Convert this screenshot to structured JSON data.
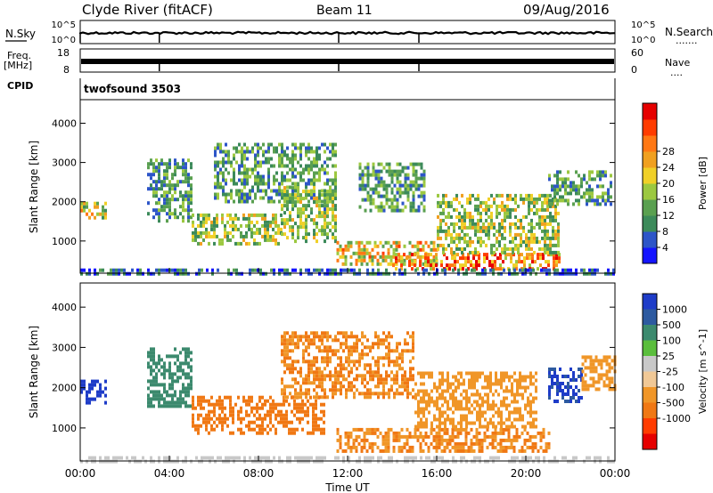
{
  "header": {
    "station": "Clyde River (fitACF)",
    "beam": "Beam 11",
    "date": "09/Aug/2016"
  },
  "noise_panel": {
    "left_label": "N.Sky",
    "left_ticks": [
      "10^5",
      "10^0"
    ],
    "right_ticks": [
      "10^5",
      "10^0"
    ],
    "right_label": "N.Search",
    "right_dots": "......."
  },
  "freq_panel": {
    "left_label_top": "Freq.",
    "left_label_bottom": "[MHz]",
    "left_ticks": [
      18,
      8
    ],
    "right_ticks": [
      60,
      0
    ],
    "right_label": "Nave",
    "right_dots": "...."
  },
  "cpid_panel": {
    "label": "CPID",
    "value": "twofsound 3503"
  },
  "axes": {
    "ylabel": "Slant Range [km]",
    "yticks": [
      1000,
      2000,
      3000,
      4000
    ],
    "xlabel": "Time UT",
    "xticks": [
      "00:00",
      "04:00",
      "08:00",
      "12:00",
      "16:00",
      "20:00",
      "00:00"
    ]
  },
  "chart_data": [
    {
      "type": "heatmap",
      "name": "power",
      "x_range_hours": [
        0,
        24
      ],
      "y_range_km": [
        180,
        4600
      ],
      "colorbar": {
        "label": "Power [dB]",
        "range": [
          0,
          32
        ],
        "ticks": [
          "4",
          "8",
          "12",
          "16",
          "20",
          "24",
          "28"
        ],
        "colors": [
          "#1414ff",
          "#2d55c8",
          "#3c8a5a",
          "#5aa050",
          "#9cc840",
          "#f0d028",
          "#f0a020",
          "#ff7814",
          "#ff3c00",
          "#e60000"
        ]
      },
      "regions": [
        {
          "t": [
            0.0,
            1.2
          ],
          "r": [
            1600,
            2000
          ],
          "v": 16
        },
        {
          "t": [
            3.0,
            5.0
          ],
          "r": [
            1500,
            3100
          ],
          "v": 9
        },
        {
          "t": [
            5.0,
            9.0
          ],
          "r": [
            900,
            1700
          ],
          "v": 14
        },
        {
          "t": [
            6.0,
            11.5
          ],
          "r": [
            2000,
            3500
          ],
          "v": 10
        },
        {
          "t": [
            9.0,
            11.5
          ],
          "r": [
            1000,
            2400
          ],
          "v": 13
        },
        {
          "t": [
            11.5,
            16.0
          ],
          "r": [
            400,
            1000
          ],
          "v": 18
        },
        {
          "t": [
            12.5,
            15.5
          ],
          "r": [
            1800,
            3000
          ],
          "v": 10
        },
        {
          "t": [
            14.0,
            21.5
          ],
          "r": [
            300,
            700
          ],
          "v": 24
        },
        {
          "t": [
            16.0,
            21.5
          ],
          "r": [
            700,
            2200
          ],
          "v": 14
        },
        {
          "t": [
            21.0,
            23.8
          ],
          "r": [
            1900,
            2800
          ],
          "v": 10
        },
        {
          "t": [
            0.0,
            24.0
          ],
          "r": [
            180,
            300
          ],
          "v": 6
        }
      ]
    },
    {
      "type": "heatmap",
      "name": "velocity",
      "x_range_hours": [
        0,
        24
      ],
      "y_range_km": [
        180,
        4600
      ],
      "colorbar": {
        "label": "Velocity [m s^-1]",
        "ticks": [
          "1000",
          "500",
          "100",
          "25",
          "-25",
          "-100",
          "-500",
          "-1000"
        ],
        "colors": [
          "#1e3cc8",
          "#2d5aa0",
          "#3c8a6e",
          "#5abe3c",
          "#c8c8c8",
          "#f0c896",
          "#f09628",
          "#f07814",
          "#ff3c00",
          "#e60000"
        ]
      },
      "regions": [
        {
          "t": [
            0.0,
            1.2
          ],
          "r": [
            1600,
            2200
          ],
          "v": 1000
        },
        {
          "t": [
            3.0,
            5.0
          ],
          "r": [
            1500,
            3000
          ],
          "v": 100
        },
        {
          "t": [
            5.0,
            11.0
          ],
          "r": [
            900,
            1800
          ],
          "v": -500
        },
        {
          "t": [
            9.0,
            15.0
          ],
          "r": [
            1800,
            3400
          ],
          "v": -300
        },
        {
          "t": [
            11.5,
            21.0
          ],
          "r": [
            400,
            1000
          ],
          "v": -300
        },
        {
          "t": [
            15.0,
            20.5
          ],
          "r": [
            1000,
            2400
          ],
          "v": -200
        },
        {
          "t": [
            21.0,
            22.5
          ],
          "r": [
            1700,
            2500
          ],
          "v": 800
        },
        {
          "t": [
            22.5,
            24.0
          ],
          "r": [
            2000,
            2800
          ],
          "v": -100
        },
        {
          "t": [
            0.0,
            24.0
          ],
          "r": [
            180,
            300
          ],
          "v": 0
        }
      ]
    }
  ]
}
